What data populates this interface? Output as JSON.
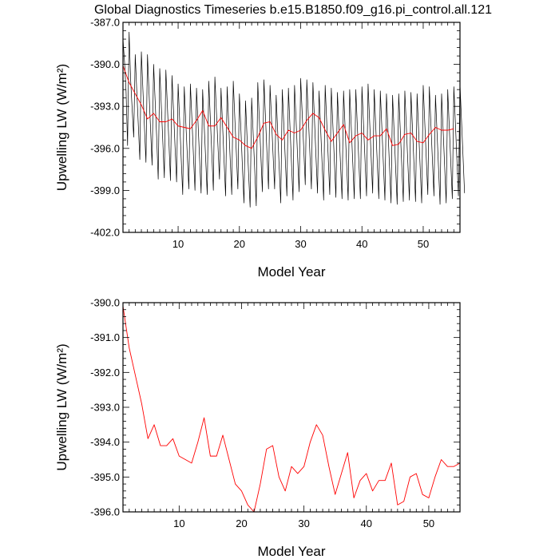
{
  "title": "Global Diagnostics Timeseries b.e15.B1850.f09_g16.pi_control.all.121",
  "colors": {
    "monthly_line": "#000000",
    "annual_line": "#ff0000",
    "axes": "#000000"
  },
  "chart_data": [
    {
      "type": "line",
      "xlabel": "Model Year",
      "ylabel": "Upwelling LW (W/m²)",
      "xlim": [
        1,
        56
      ],
      "ylim": [
        -402,
        -387
      ],
      "xticks": [
        10,
        20,
        30,
        40,
        50
      ],
      "xtick_labels": [
        "10",
        "20",
        "30",
        "40",
        "50"
      ],
      "yticks": [
        -402,
        -399,
        -396,
        -393,
        -390,
        -387
      ],
      "ytick_labels": [
        "-402.0",
        "-399.0",
        "-396.0",
        "-393.0",
        "-390.0",
        "-387.0"
      ],
      "series": [
        {
          "style": "monthly",
          "color": "#000000",
          "x_start": 1,
          "x_step": 0.25,
          "values": [
            -388.2,
            -389.8,
            -391.9,
            -395.8,
            -387.7,
            -391.1,
            -393.2,
            -395.2,
            -389.3,
            -391.9,
            -394.3,
            -396.8,
            -389.1,
            -391.8,
            -394.4,
            -397.0,
            -389.3,
            -392.0,
            -394.6,
            -397.2,
            -390.0,
            -392.6,
            -395.2,
            -398.2,
            -390.3,
            -392.9,
            -395.5,
            -398.1,
            -390.4,
            -393.0,
            -395.6,
            -398.3,
            -390.8,
            -393.3,
            -395.9,
            -398.4,
            -391.4,
            -394.0,
            -396.7,
            -399.3,
            -391.6,
            -394.1,
            -396.5,
            -398.9,
            -391.4,
            -393.9,
            -396.5,
            -399.0,
            -391.7,
            -394.2,
            -396.7,
            -399.2,
            -391.8,
            -394.3,
            -396.8,
            -399.3,
            -391.2,
            -393.8,
            -396.4,
            -399.0,
            -390.9,
            -393.4,
            -395.8,
            -398.2,
            -391.7,
            -394.3,
            -396.9,
            -399.4,
            -391.6,
            -394.2,
            -396.8,
            -399.3,
            -391.2,
            -393.8,
            -396.3,
            -398.9,
            -392.1,
            -394.7,
            -397.4,
            -399.9,
            -392.6,
            -395.2,
            -397.8,
            -400.2,
            -392.4,
            -395.0,
            -397.5,
            -400.1,
            -391.3,
            -393.9,
            -396.5,
            -399.1,
            -391.1,
            -393.7,
            -396.3,
            -398.9,
            -391.5,
            -394.0,
            -396.5,
            -398.9,
            -392.2,
            -394.8,
            -397.4,
            -399.9,
            -391.8,
            -394.3,
            -396.9,
            -399.4,
            -391.7,
            -394.4,
            -397.0,
            -399.7,
            -391.5,
            -394.0,
            -396.6,
            -399.1,
            -391.0,
            -393.5,
            -396.0,
            -398.6,
            -391.1,
            -393.7,
            -396.3,
            -398.9,
            -391.3,
            -393.9,
            -396.6,
            -399.2,
            -391.9,
            -394.5,
            -397.1,
            -399.7,
            -391.5,
            -394.1,
            -396.7,
            -399.3,
            -391.7,
            -394.3,
            -396.9,
            -399.5,
            -392.0,
            -394.6,
            -397.1,
            -399.6,
            -391.9,
            -394.5,
            -397.1,
            -399.7,
            -391.8,
            -394.4,
            -397.0,
            -399.6,
            -391.8,
            -394.4,
            -397.0,
            -399.6,
            -391.6,
            -394.2,
            -396.8,
            -399.4,
            -391.4,
            -394.0,
            -396.6,
            -399.2,
            -391.8,
            -394.4,
            -397.0,
            -399.6,
            -391.9,
            -394.5,
            -397.1,
            -399.7,
            -392.1,
            -394.7,
            -397.3,
            -399.9,
            -392.2,
            -394.8,
            -397.4,
            -400.0,
            -392.1,
            -394.6,
            -397.2,
            -399.8,
            -391.9,
            -394.5,
            -397.1,
            -399.7,
            -392.0,
            -394.6,
            -397.2,
            -399.8,
            -392.1,
            -394.7,
            -397.3,
            -399.9,
            -391.5,
            -394.1,
            -396.7,
            -399.3,
            -391.6,
            -394.2,
            -396.8,
            -399.4,
            -392.2,
            -394.8,
            -397.4,
            -400.0,
            -392.1,
            -394.7,
            -397.3,
            -399.9,
            -391.8,
            -394.4,
            -397.0,
            -399.6,
            -391.6,
            -394.2,
            -396.8,
            -399.4,
            -391.4,
            -394.0,
            -396.6,
            -399.2
          ]
        },
        {
          "style": "annual",
          "color": "#ff0000",
          "x": [
            1,
            2,
            3,
            4,
            5,
            6,
            7,
            8,
            9,
            10,
            11,
            12,
            13,
            14,
            15,
            16,
            17,
            18,
            19,
            20,
            21,
            22,
            23,
            24,
            25,
            26,
            27,
            28,
            29,
            30,
            31,
            32,
            33,
            34,
            35,
            36,
            37,
            38,
            39,
            40,
            41,
            42,
            43,
            44,
            45,
            46,
            47,
            48,
            49,
            50,
            51,
            52,
            53,
            54,
            55
          ],
          "values": [
            -390.1,
            -391.3,
            -392.1,
            -392.9,
            -393.9,
            -393.5,
            -394.1,
            -394.1,
            -393.9,
            -394.4,
            -394.5,
            -394.6,
            -394.0,
            -393.3,
            -394.4,
            -394.4,
            -393.8,
            -394.5,
            -395.2,
            -395.4,
            -395.8,
            -396.0,
            -395.2,
            -394.2,
            -394.1,
            -395.0,
            -395.4,
            -394.7,
            -394.9,
            -394.7,
            -394.0,
            -393.5,
            -393.8,
            -394.7,
            -395.5,
            -394.9,
            -394.3,
            -395.6,
            -395.1,
            -394.9,
            -395.4,
            -395.1,
            -395.1,
            -394.6,
            -395.8,
            -395.7,
            -395.0,
            -394.9,
            -395.5,
            -395.6,
            -395.0,
            -394.5,
            -394.7,
            -394.7,
            -394.6
          ]
        }
      ]
    },
    {
      "type": "line",
      "xlabel": "Model Year",
      "ylabel": "Upwelling LW (W/m²)",
      "xlim": [
        1,
        55
      ],
      "ylim": [
        -396,
        -390
      ],
      "xticks": [
        10,
        20,
        30,
        40,
        50
      ],
      "xtick_labels": [
        "10",
        "20",
        "30",
        "40",
        "50"
      ],
      "yticks": [
        -396,
        -395,
        -394,
        -393,
        -392,
        -391,
        -390
      ],
      "ytick_labels": [
        "-396.0",
        "-395.0",
        "-394.0",
        "-393.0",
        "-392.0",
        "-391.0",
        "-390.0"
      ],
      "series": [
        {
          "style": "annual",
          "color": "#ff0000",
          "x": [
            1,
            2,
            3,
            4,
            5,
            6,
            7,
            8,
            9,
            10,
            11,
            12,
            13,
            14,
            15,
            16,
            17,
            18,
            19,
            20,
            21,
            22,
            23,
            24,
            25,
            26,
            27,
            28,
            29,
            30,
            31,
            32,
            33,
            34,
            35,
            36,
            37,
            38,
            39,
            40,
            41,
            42,
            43,
            44,
            45,
            46,
            47,
            48,
            49,
            50,
            51,
            52,
            53,
            54,
            55
          ],
          "values": [
            -390.1,
            -391.3,
            -392.1,
            -392.9,
            -393.9,
            -393.5,
            -394.1,
            -394.1,
            -393.9,
            -394.4,
            -394.5,
            -394.6,
            -394.0,
            -393.3,
            -394.4,
            -394.4,
            -393.8,
            -394.5,
            -395.2,
            -395.4,
            -395.8,
            -396.0,
            -395.2,
            -394.2,
            -394.1,
            -395.0,
            -395.4,
            -394.7,
            -394.9,
            -394.7,
            -394.0,
            -393.5,
            -393.8,
            -394.7,
            -395.5,
            -394.9,
            -394.3,
            -395.6,
            -395.1,
            -394.9,
            -395.4,
            -395.1,
            -395.1,
            -394.6,
            -395.8,
            -395.7,
            -395.0,
            -394.9,
            -395.5,
            -395.6,
            -395.0,
            -394.5,
            -394.7,
            -394.7,
            -394.6
          ]
        }
      ]
    }
  ]
}
